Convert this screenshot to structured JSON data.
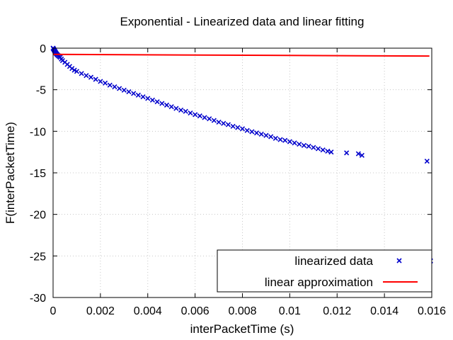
{
  "chart_data": {
    "type": "scatter",
    "title": "Exponential - Linearized data and linear fitting",
    "xlabel": "interPacketTime (s)",
    "ylabel": "F(interPacketTime)",
    "xlim": [
      0,
      0.016
    ],
    "ylim": [
      -30,
      0
    ],
    "x_ticks": [
      0,
      0.002,
      0.004,
      0.006,
      0.008,
      0.01,
      0.012,
      0.014,
      0.016
    ],
    "x_tick_labels": [
      "0",
      "0.002",
      "0.004",
      "0.006",
      "0.008",
      "0.01",
      "0.012",
      "0.014",
      "0.016"
    ],
    "y_ticks": [
      0,
      -5,
      -10,
      -15,
      -20,
      -25,
      -30
    ],
    "y_tick_labels": [
      "0",
      "-5",
      "-10",
      "-15",
      "-20",
      "-25",
      "-30"
    ],
    "grid": true,
    "legend_position": "bottom-right",
    "colors": {
      "points": "#0000cc",
      "line": "#ff0000",
      "grid": "#c8c8c8"
    },
    "series": [
      {
        "name": "linearized data",
        "kind": "points",
        "marker": "x",
        "x": [
          0.0,
          2e-05,
          4e-05,
          6e-05,
          8e-05,
          0.0001,
          0.00012,
          0.00015,
          0.00018,
          0.00022,
          0.00026,
          0.0003,
          0.00035,
          0.0004,
          0.0005,
          0.0006,
          0.0007,
          0.0008,
          0.0009,
          0.001,
          0.0012,
          0.0014,
          0.0016,
          0.0018,
          0.002,
          0.0022,
          0.0024,
          0.0026,
          0.0028,
          0.003,
          0.0032,
          0.0034,
          0.0036,
          0.0038,
          0.004,
          0.0042,
          0.0044,
          0.0046,
          0.0048,
          0.005,
          0.0052,
          0.0054,
          0.0056,
          0.0058,
          0.006,
          0.0062,
          0.0064,
          0.0066,
          0.0068,
          0.007,
          0.0072,
          0.0074,
          0.0076,
          0.0078,
          0.008,
          0.0082,
          0.0084,
          0.0086,
          0.0088,
          0.009,
          0.0092,
          0.0094,
          0.0096,
          0.0098,
          0.01,
          0.0102,
          0.0104,
          0.0106,
          0.0108,
          0.011,
          0.0112,
          0.0114,
          0.0116,
          0.01175,
          0.0124,
          0.0129,
          0.01305,
          0.0158,
          0.01595
        ],
        "y": [
          0.0,
          -0.1,
          -0.2,
          -0.3,
          -0.4,
          -0.5,
          -0.6,
          -0.7,
          -0.8,
          -0.9,
          -1.0,
          -1.1,
          -1.3,
          -1.5,
          -1.7,
          -1.95,
          -2.2,
          -2.45,
          -2.65,
          -2.8,
          -3.05,
          -3.3,
          -3.5,
          -3.75,
          -4.0,
          -4.2,
          -4.45,
          -4.65,
          -4.85,
          -5.05,
          -5.25,
          -5.45,
          -5.65,
          -5.85,
          -6.05,
          -6.25,
          -6.45,
          -6.65,
          -6.85,
          -7.05,
          -7.25,
          -7.45,
          -7.6,
          -7.8,
          -8.0,
          -8.15,
          -8.35,
          -8.5,
          -8.7,
          -8.9,
          -9.05,
          -9.2,
          -9.4,
          -9.55,
          -9.7,
          -9.9,
          -10.05,
          -10.2,
          -10.35,
          -10.5,
          -10.65,
          -10.85,
          -11.0,
          -11.1,
          -11.25,
          -11.4,
          -11.55,
          -11.7,
          -11.8,
          -11.95,
          -12.1,
          -12.25,
          -12.4,
          -12.5,
          -12.6,
          -12.7,
          -12.9,
          -13.6,
          -25.6
        ]
      },
      {
        "name": "linear approximation",
        "kind": "line",
        "x": [
          0,
          0.0159
        ],
        "y": [
          -0.75,
          -0.95
        ]
      }
    ]
  }
}
